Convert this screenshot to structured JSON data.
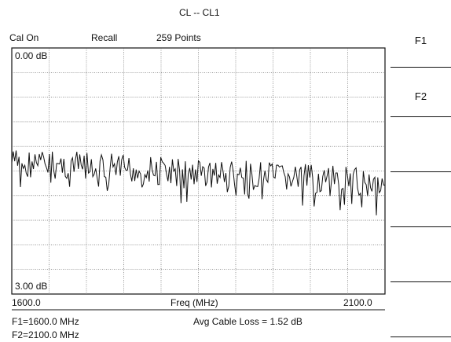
{
  "header": {
    "title": "CL -- CL1",
    "cal_status": "Cal On",
    "mode": "Recall",
    "points": "259 Points"
  },
  "plot": {
    "top_label": "0.00 dB",
    "bottom_label": "3.00 dB",
    "x_start": "1600.0",
    "x_end": "2100.0",
    "x_axis_label": "Freq (MHz)",
    "y_top_db": 0.0,
    "y_bottom_db": 3.0,
    "grid": true
  },
  "footer": {
    "f1": "F1=1600.0 MHz",
    "f2": "F2=2100.0 MHz",
    "avg_loss": "Avg Cable Loss = 1.52 dB"
  },
  "softkeys": [
    {
      "label": "F1"
    },
    {
      "label": "F2"
    },
    {
      "label": ""
    },
    {
      "label": ""
    },
    {
      "label": ""
    },
    {
      "label": ""
    }
  ],
  "chart_data": {
    "type": "line",
    "title": "",
    "xlabel": "Freq (MHz)",
    "ylabel": "",
    "xlim": [
      1600,
      2100
    ],
    "ylim_db": [
      0.0,
      3.0
    ],
    "points": 259,
    "series": [
      {
        "approx_trend_db": {
          "start": 1.4,
          "end": 1.65
        },
        "approx_ripple_db": 0.18
      }
    ]
  }
}
